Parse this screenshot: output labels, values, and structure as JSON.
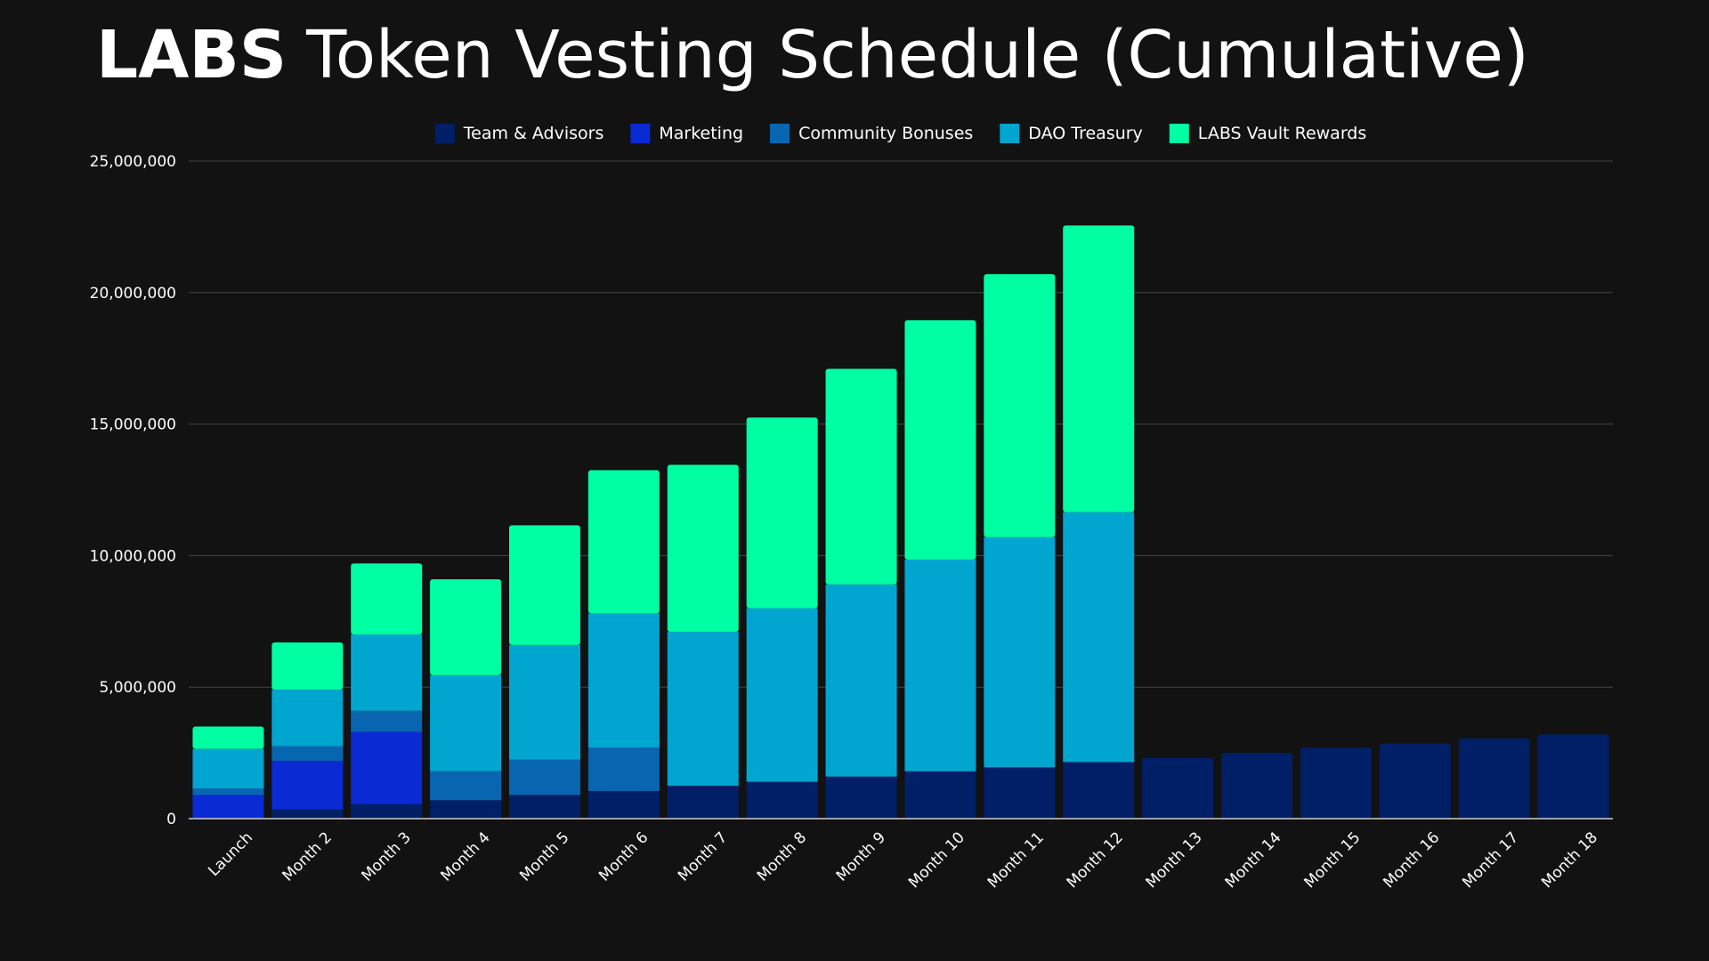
{
  "title": {
    "bold": "LABS",
    "rest": "Token Vesting Schedule (Cumulative)"
  },
  "colors": {
    "background": "#121212",
    "gridline": "#444444",
    "axis": "#cccccc"
  },
  "chart_data": {
    "type": "bar",
    "stacked": true,
    "title": "LABS Token Vesting Schedule (Cumulative)",
    "legend_position": "top-center",
    "grid": true,
    "ylim": [
      0,
      25000000
    ],
    "yticks": [
      "0",
      "5,000,000",
      "10,000,000",
      "15,000,000",
      "20,000,000",
      "25,000,000"
    ],
    "categories": [
      "Launch",
      "Month 2",
      "Month 3",
      "Month 4",
      "Month 5",
      "Month 6",
      "Month 7",
      "Month 8",
      "Month 9",
      "Month 10",
      "Month 11",
      "Month 12",
      "Month 13",
      "Month 14",
      "Month 15",
      "Month 16",
      "Month 17",
      "Month 18"
    ],
    "series": [
      {
        "name": "Team & Advisors",
        "color": "#001f66",
        "values": [
          0,
          350000,
          550000,
          700000,
          900000,
          1050000,
          1250000,
          1400000,
          1600000,
          1800000,
          1950000,
          2150000,
          2300000,
          2500000,
          2700000,
          2850000,
          3050000,
          3200000
        ]
      },
      {
        "name": "Marketing",
        "color": "#0a2ad4",
        "values": [
          900000,
          1850000,
          2750000,
          0,
          0,
          0,
          0,
          0,
          0,
          0,
          0,
          0,
          0,
          0,
          0,
          0,
          0,
          0
        ]
      },
      {
        "name": "Community Bonuses",
        "color": "#0866b0",
        "values": [
          250000,
          550000,
          800000,
          1100000,
          1350000,
          1650000,
          0,
          0,
          0,
          0,
          0,
          0,
          0,
          0,
          0,
          0,
          0,
          0
        ]
      },
      {
        "name": "DAO Treasury",
        "color": "#00a6cf",
        "values": [
          1500000,
          2150000,
          2900000,
          3650000,
          4350000,
          5100000,
          5850000,
          6600000,
          7300000,
          8050000,
          8750000,
          9500000,
          0,
          0,
          0,
          0,
          0,
          0
        ]
      },
      {
        "name": "LABS Vault Rewards",
        "color": "#00ffa3",
        "values": [
          850000,
          1800000,
          2700000,
          3650000,
          4550000,
          5450000,
          6350000,
          7250000,
          8200000,
          9100000,
          10000000,
          10900000,
          0,
          0,
          0,
          0,
          0,
          0
        ]
      }
    ]
  }
}
